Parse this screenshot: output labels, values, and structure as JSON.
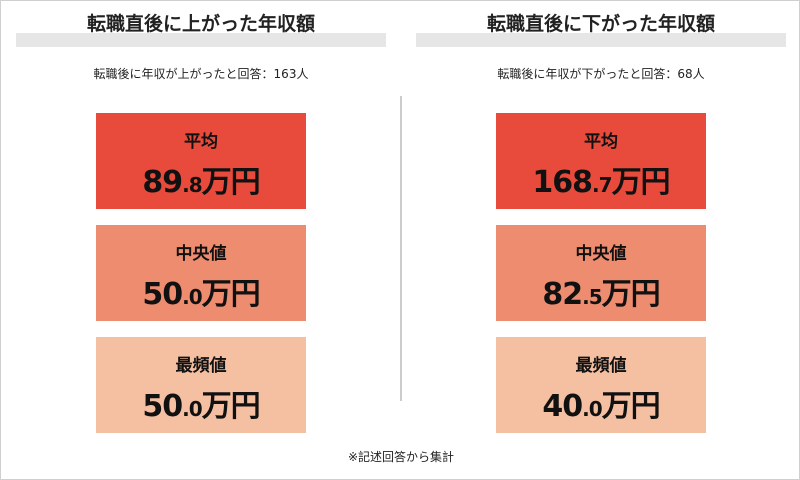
{
  "panels": [
    {
      "title": "転職直後に上がった年収額",
      "note": "転職後に年収が上がったと回答：163人",
      "stats": [
        {
          "label": "平均",
          "value": "89.8",
          "unit": "万円"
        },
        {
          "label": "中央値",
          "value": "50.0",
          "unit": "万円"
        },
        {
          "label": "最頻値",
          "value": "50.0",
          "unit": "万円"
        }
      ]
    },
    {
      "title": "転職直後に下がった年収額",
      "note": "転職後に年収が下がったと回答：68人",
      "stats": [
        {
          "label": "平均",
          "value": "168.7",
          "unit": "万円"
        },
        {
          "label": "中央値",
          "value": "82.5",
          "unit": "万円"
        },
        {
          "label": "最頻値",
          "value": "40.0",
          "unit": "万円"
        }
      ]
    }
  ],
  "footnote": "※記述回答から集計"
}
